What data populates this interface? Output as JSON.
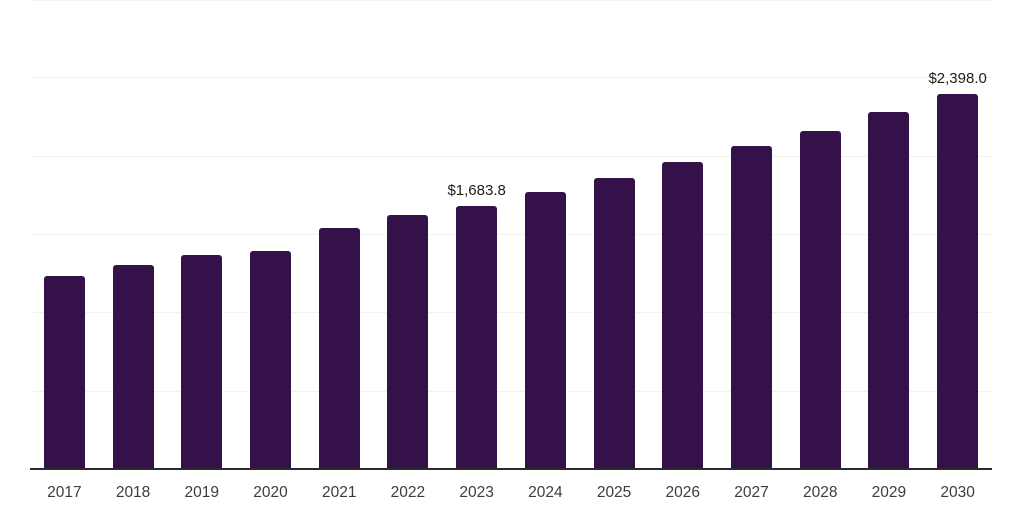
{
  "chart_data": {
    "type": "bar",
    "title": "",
    "xlabel": "",
    "ylabel": "",
    "categories": [
      "2017",
      "2018",
      "2019",
      "2020",
      "2021",
      "2022",
      "2023",
      "2024",
      "2025",
      "2026",
      "2027",
      "2028",
      "2029",
      "2030"
    ],
    "values": [
      1238.9,
      1305.9,
      1370.0,
      1398.9,
      1543.0,
      1628.2,
      1683.8,
      1776.6,
      1863.0,
      1968.7,
      2071.1,
      2167.1,
      2285.5,
      2398.0
    ],
    "labeled_points": [
      {
        "category": "2023",
        "label": "$1,683.8"
      },
      {
        "category": "2030",
        "label": "$2,398.0"
      }
    ],
    "ylim": [
      0,
      3000
    ],
    "gridline_step": 500,
    "grid": true,
    "legend": false,
    "colors": {
      "bar": "#341249",
      "axis": "#2b2b2b",
      "gridline": "#f1f1f1",
      "data_label": "#1c1c1c",
      "tick_label": "#3c3c3c",
      "background": "#ffffff"
    }
  }
}
